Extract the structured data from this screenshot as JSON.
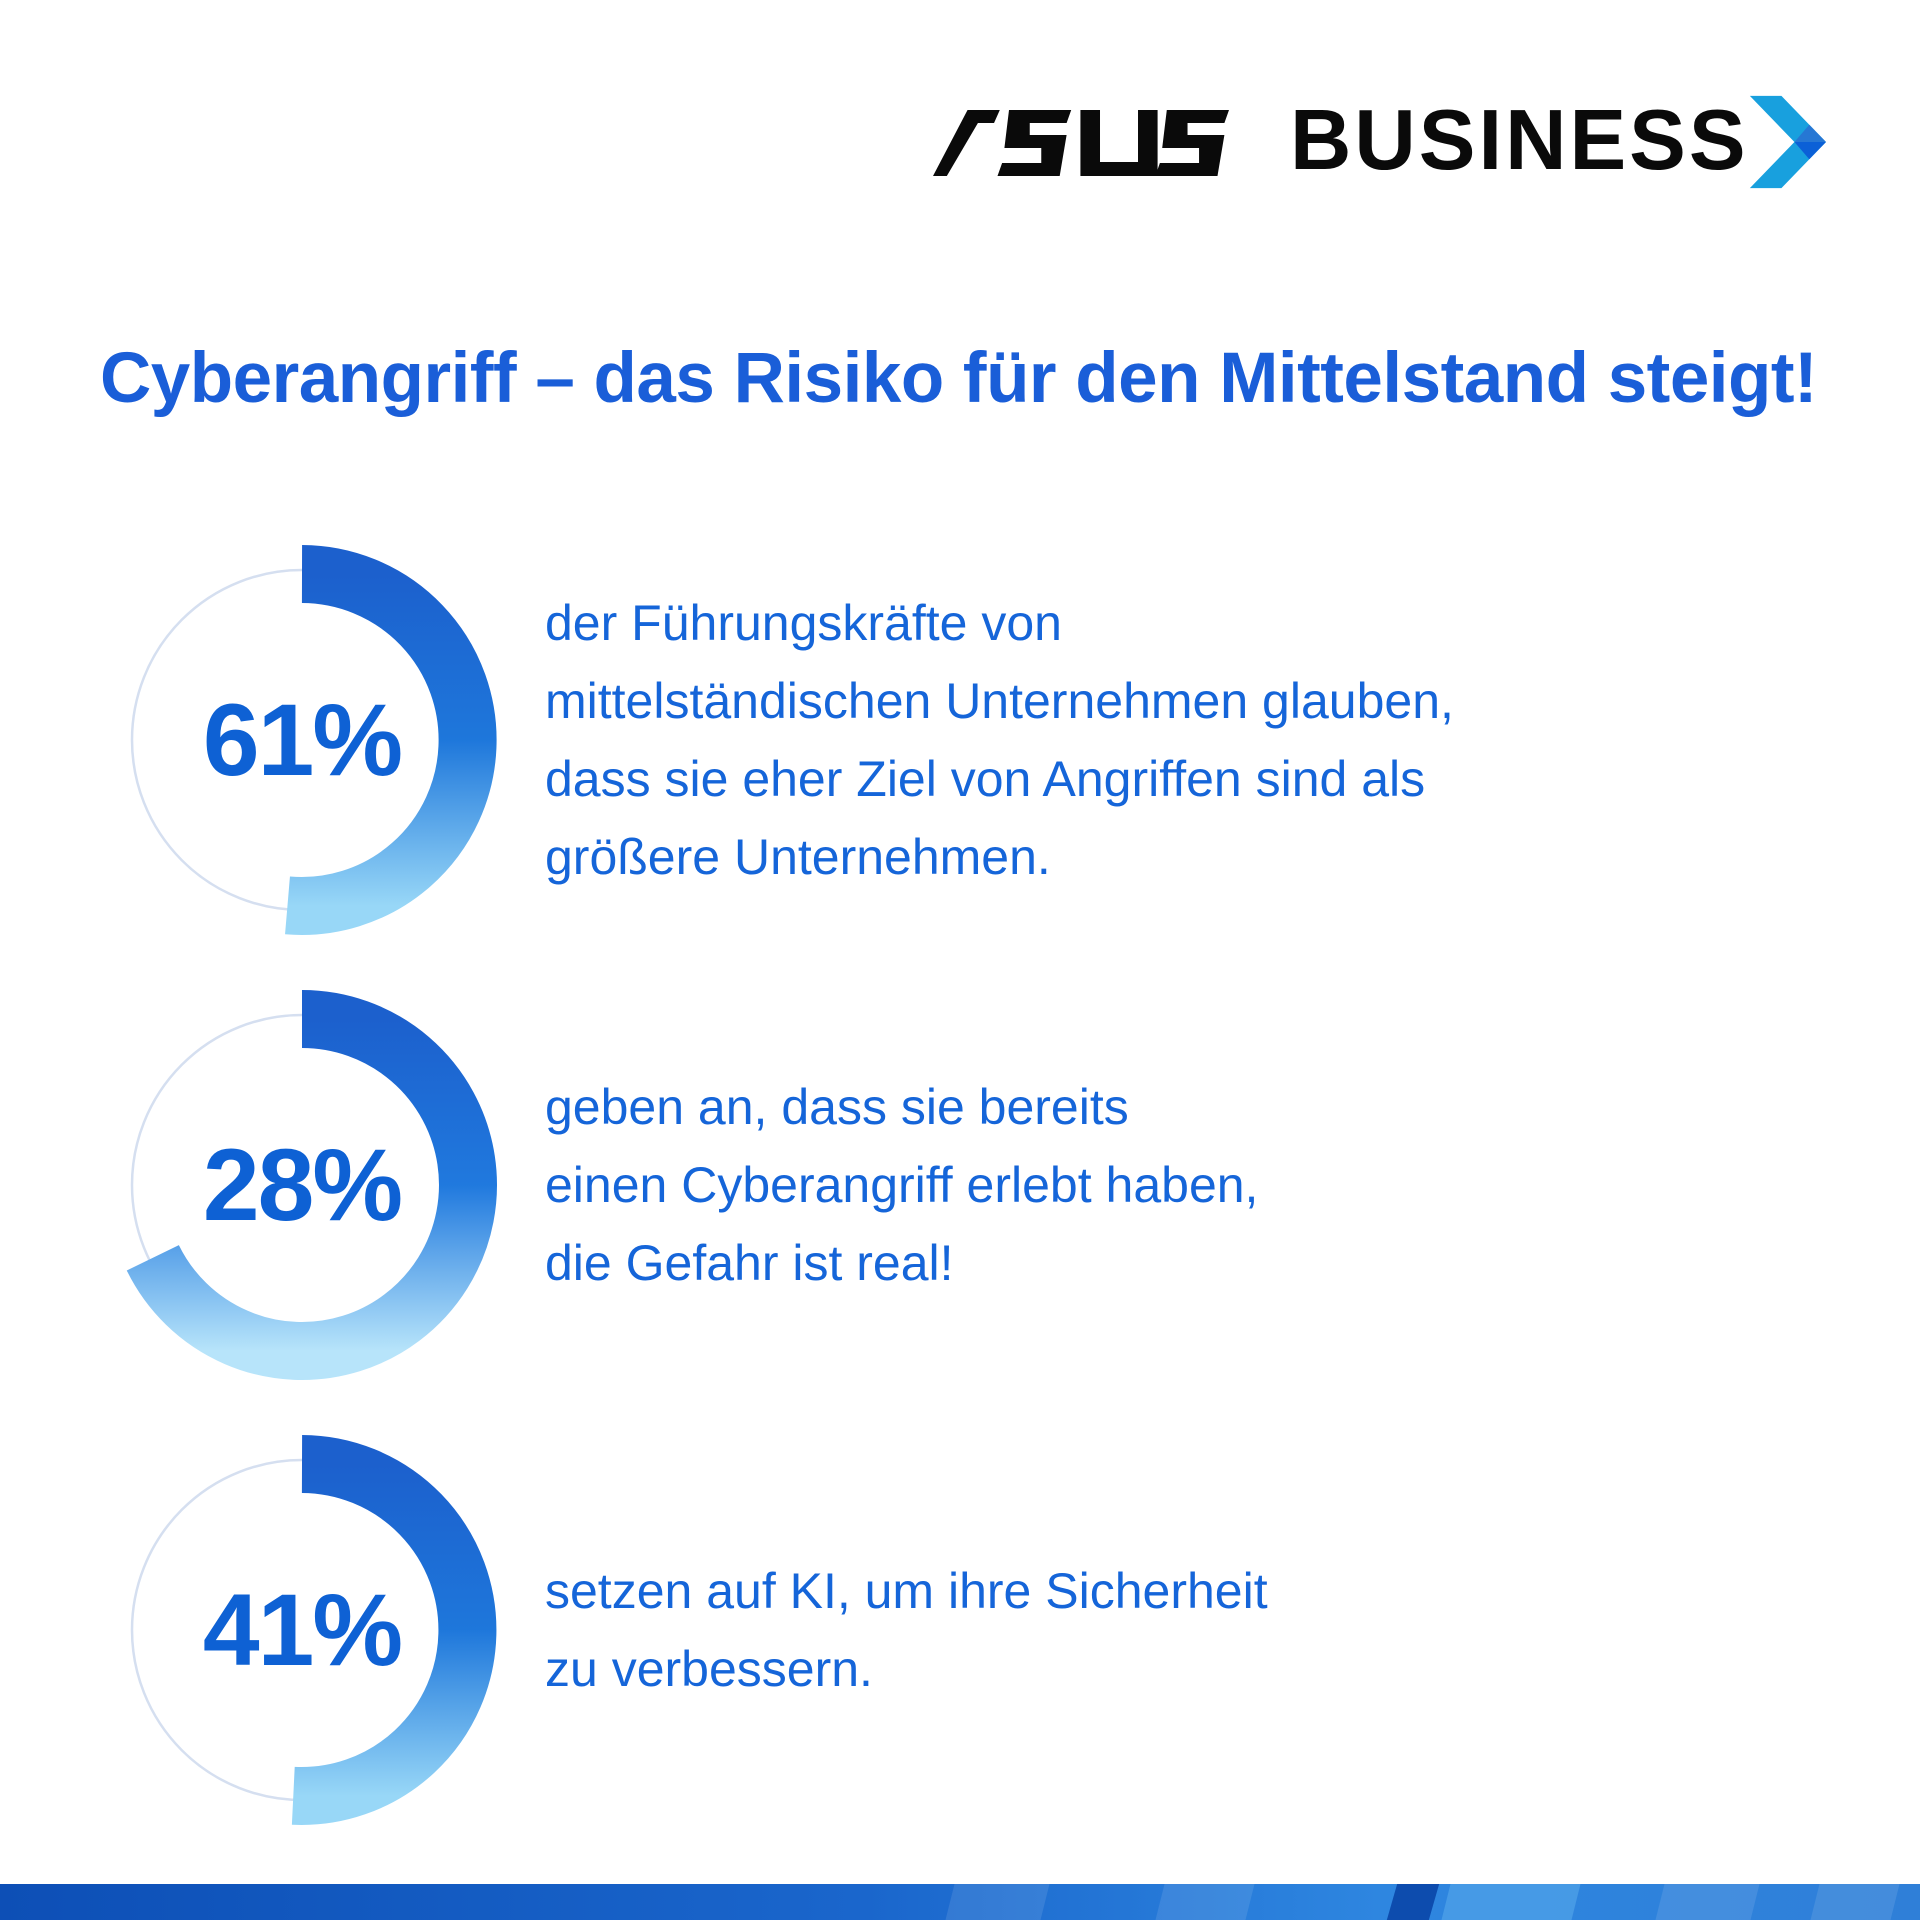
{
  "header": {
    "asus_wordmark": "ASUS",
    "business_label": "BUSINESS"
  },
  "title": {
    "text": "Cyberangriff – das Risiko für den Mittelstand steigt!"
  },
  "chart_data": [
    {
      "type": "donut",
      "value": 61,
      "value_label": "61%",
      "start_deg": 0,
      "sweep_deg": 185,
      "direction": "clockwise",
      "radius": 166,
      "stroke_width": 58,
      "track_color": "#d5dff0",
      "arc_gradient": [
        "#1c60cd",
        "#1e77db",
        "#98d7f7"
      ],
      "caption_lines": [
        "der Führungskräfte von",
        "mittelständischen Unternehmen glauben,",
        "dass sie eher Ziel von Angriffen sind als",
        "größere Unternehmen."
      ]
    },
    {
      "type": "donut",
      "value": 28,
      "value_label": "28%",
      "start_deg": 0,
      "sweep_deg": 244,
      "direction": "clockwise",
      "radius": 166,
      "stroke_width": 58,
      "track_color": "#d5dff0",
      "arc_gradient": [
        "#1c60cd",
        "#2079de",
        "#b7e4fa"
      ],
      "caption_lines": [
        "geben an, dass sie bereits",
        "einen Cyberangriff erlebt haben,",
        "die Gefahr ist real!"
      ]
    },
    {
      "type": "donut",
      "value": 41,
      "value_label": "41%",
      "start_deg": 0,
      "sweep_deg": 183,
      "direction": "clockwise",
      "radius": 166,
      "stroke_width": 58,
      "track_color": "#d5dff0",
      "arc_gradient": [
        "#1c60cd",
        "#1e77db",
        "#98d7f7"
      ],
      "caption_lines": [
        "setzen auf KI, um ihre Sicherheit",
        "zu verbessern."
      ]
    }
  ],
  "colors": {
    "title-blue": "#1a5ed8",
    "body-blue": "#1565d9",
    "percent-blue": "#0e61d4",
    "logo-black": "#0a0a0a",
    "arrow-light": "#18a0de",
    "arrow-mid": "#2677d4",
    "arrow-dark": "#0b60d7",
    "bar-a": "#0d4fb6",
    "bar-b": "#1a66cc",
    "bar-c": "#2e86e0",
    "bar-d": "#2f7fd8",
    "facet-dark": "#0a46a8"
  }
}
